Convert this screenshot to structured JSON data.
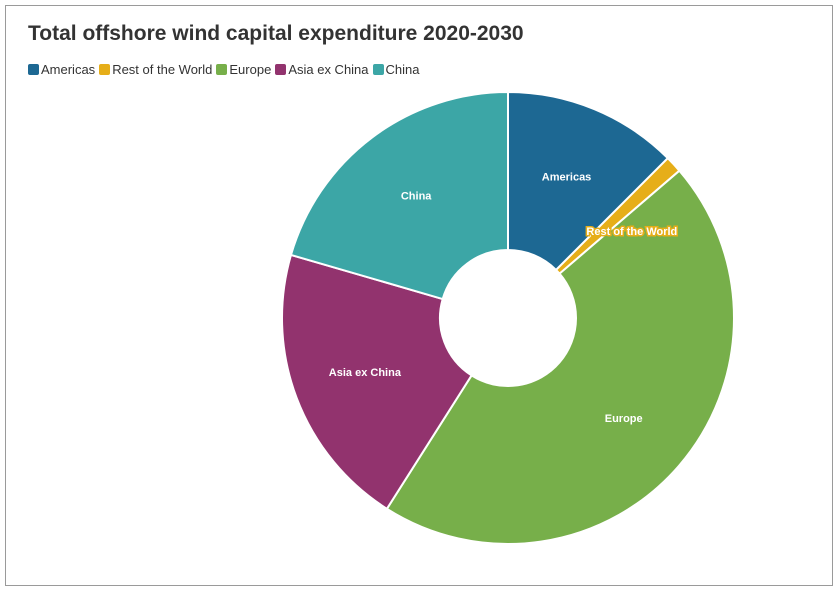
{
  "chart_data": {
    "type": "pie",
    "title": "Total offshore wind capital expenditure 2020-2030",
    "legend_position": "top-left",
    "donut": true,
    "slices": [
      {
        "name": "Americas",
        "value": 12.5,
        "color": "#1d6893"
      },
      {
        "name": "Rest of the World",
        "value": 1.2,
        "color": "#e6ae19"
      },
      {
        "name": "Europe",
        "value": 45.3,
        "color": "#77af4a"
      },
      {
        "name": "Asia ex China",
        "value": 20.5,
        "color": "#92336e"
      },
      {
        "name": "China",
        "value": 20.5,
        "color": "#3ca6a6"
      }
    ],
    "legend_order": [
      "Americas",
      "Rest of the World",
      "Europe",
      "Asia ex China",
      "China"
    ]
  }
}
